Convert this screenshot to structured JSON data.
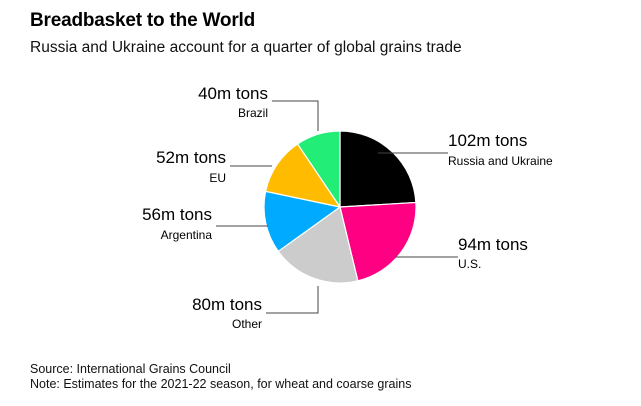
{
  "title": "Breadbasket to the World",
  "subtitle": "Russia and Ukraine account for a quarter of global grains trade",
  "chart_data": {
    "type": "pie",
    "unit": "m tons",
    "slices": [
      {
        "label": "Russia and Ukraine",
        "value": 102,
        "value_label": "102m tons",
        "color": "#000000"
      },
      {
        "label": "U.S.",
        "value": 94,
        "value_label": "94m tons",
        "color": "#ff0083"
      },
      {
        "label": "Other",
        "value": 80,
        "value_label": "80m tons",
        "color": "#cccccc"
      },
      {
        "label": "Argentina",
        "value": 56,
        "value_label": "56m tons",
        "color": "#00aaff"
      },
      {
        "label": "EU",
        "value": 52,
        "value_label": "52m tons",
        "color": "#ffbb00"
      },
      {
        "label": "Brazil",
        "value": 40,
        "value_label": "40m tons",
        "color": "#22ee77"
      }
    ],
    "legend": "none"
  },
  "source": "Source: International Grains Council",
  "note": "Note: Estimates for the 2021-22 season, for wheat and coarse grains"
}
